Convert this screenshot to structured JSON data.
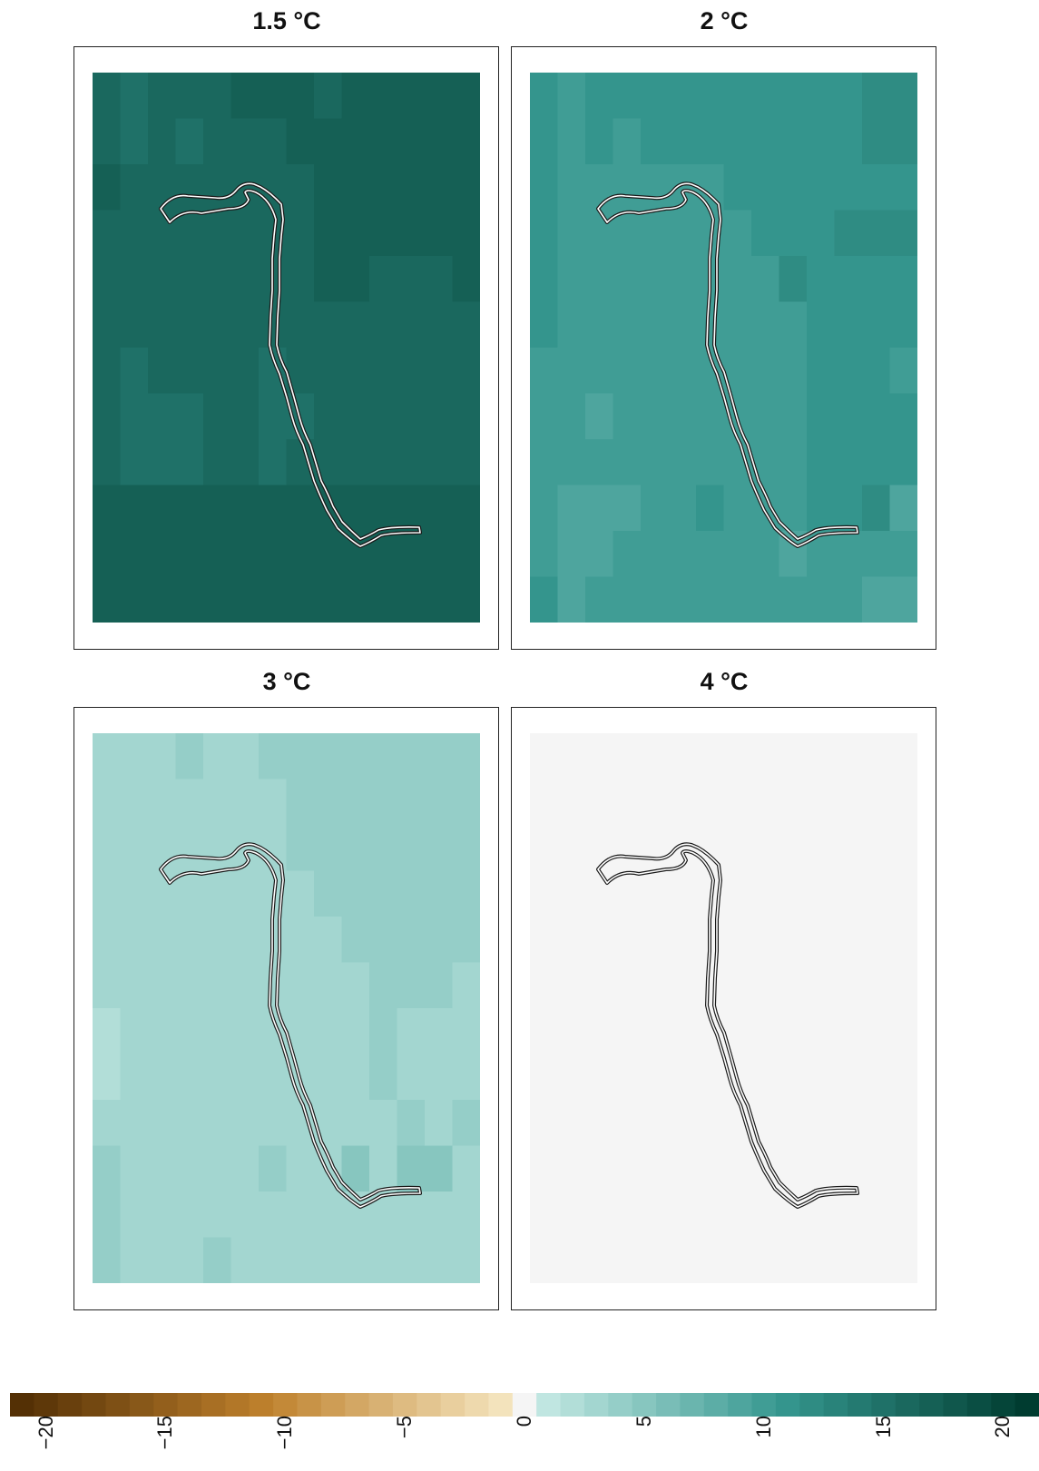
{
  "chart_data": {
    "type": "heatmap",
    "panels": [
      {
        "title": "1.5 °C",
        "grid": [
          [
            16,
            15,
            16,
            16,
            16,
            17,
            17,
            17,
            16,
            17,
            17,
            17,
            17,
            17
          ],
          [
            16,
            15,
            16,
            15,
            16,
            16,
            16,
            17,
            17,
            17,
            17,
            17,
            17,
            17
          ],
          [
            17,
            16,
            16,
            16,
            16,
            16,
            16,
            16,
            17,
            17,
            17,
            17,
            17,
            17
          ],
          [
            16,
            16,
            16,
            16,
            16,
            16,
            16,
            16,
            17,
            17,
            17,
            17,
            17,
            17
          ],
          [
            16,
            16,
            16,
            16,
            16,
            16,
            16,
            16,
            17,
            17,
            16,
            16,
            16,
            17
          ],
          [
            16,
            16,
            16,
            16,
            16,
            16,
            16,
            16,
            16,
            16,
            16,
            16,
            16,
            16
          ],
          [
            16,
            15,
            16,
            16,
            16,
            16,
            15,
            16,
            16,
            16,
            16,
            16,
            16,
            16
          ],
          [
            16,
            15,
            15,
            15,
            16,
            16,
            15,
            15,
            16,
            16,
            16,
            16,
            16,
            16
          ],
          [
            16,
            15,
            15,
            15,
            16,
            16,
            15,
            16,
            16,
            16,
            16,
            16,
            16,
            16
          ],
          [
            17,
            17,
            17,
            17,
            17,
            17,
            17,
            17,
            17,
            17,
            17,
            17,
            17,
            17
          ],
          [
            17,
            17,
            17,
            17,
            17,
            17,
            17,
            17,
            17,
            17,
            17,
            17,
            17,
            17
          ],
          [
            17,
            17,
            17,
            17,
            17,
            17,
            17,
            17,
            17,
            17,
            17,
            17,
            17,
            17
          ]
        ]
      },
      {
        "title": "2 °C",
        "grid": [
          [
            11,
            10,
            11,
            11,
            11,
            11,
            11,
            11,
            11,
            11,
            11,
            11,
            12,
            12
          ],
          [
            11,
            10,
            11,
            10,
            11,
            11,
            11,
            11,
            11,
            11,
            11,
            11,
            12,
            12
          ],
          [
            11,
            10,
            10,
            10,
            10,
            10,
            10,
            11,
            11,
            11,
            11,
            11,
            11,
            11
          ],
          [
            11,
            10,
            10,
            10,
            10,
            10,
            10,
            10,
            11,
            11,
            11,
            12,
            12,
            12
          ],
          [
            11,
            10,
            10,
            10,
            10,
            10,
            10,
            10,
            10,
            12,
            11,
            11,
            11,
            11
          ],
          [
            11,
            10,
            10,
            10,
            10,
            10,
            10,
            10,
            10,
            10,
            11,
            11,
            11,
            11
          ],
          [
            10,
            10,
            10,
            10,
            10,
            10,
            10,
            10,
            10,
            10,
            11,
            11,
            11,
            10
          ],
          [
            10,
            10,
            9,
            10,
            10,
            10,
            10,
            10,
            10,
            10,
            11,
            11,
            11,
            11
          ],
          [
            10,
            10,
            10,
            10,
            10,
            10,
            10,
            10,
            10,
            10,
            11,
            11,
            11,
            11
          ],
          [
            10,
            9,
            9,
            9,
            10,
            10,
            11,
            10,
            10,
            10,
            11,
            11,
            12,
            9
          ],
          [
            10,
            9,
            9,
            10,
            10,
            10,
            10,
            10,
            10,
            9,
            10,
            10,
            10,
            10
          ],
          [
            11,
            9,
            10,
            10,
            10,
            10,
            10,
            10,
            10,
            10,
            10,
            10,
            9,
            9
          ]
        ]
      },
      {
        "title": "3 °C",
        "grid": [
          [
            3,
            3,
            3,
            4,
            3,
            3,
            4,
            4,
            4,
            4,
            4,
            4,
            4,
            4
          ],
          [
            3,
            3,
            3,
            3,
            3,
            3,
            3,
            4,
            4,
            4,
            4,
            4,
            4,
            4
          ],
          [
            3,
            3,
            3,
            3,
            3,
            3,
            3,
            4,
            4,
            4,
            4,
            4,
            4,
            4
          ],
          [
            3,
            3,
            3,
            3,
            3,
            3,
            3,
            3,
            4,
            4,
            4,
            4,
            4,
            4
          ],
          [
            3,
            3,
            3,
            3,
            3,
            3,
            3,
            3,
            3,
            4,
            4,
            4,
            4,
            4
          ],
          [
            3,
            3,
            3,
            3,
            3,
            3,
            3,
            3,
            3,
            3,
            4,
            4,
            4,
            3
          ],
          [
            2,
            3,
            3,
            3,
            3,
            3,
            3,
            3,
            3,
            3,
            4,
            3,
            3,
            3
          ],
          [
            2,
            3,
            3,
            3,
            3,
            3,
            3,
            3,
            3,
            3,
            4,
            3,
            3,
            3
          ],
          [
            3,
            3,
            3,
            3,
            3,
            3,
            3,
            3,
            3,
            3,
            3,
            4,
            3,
            4
          ],
          [
            4,
            3,
            3,
            3,
            3,
            3,
            4,
            3,
            3,
            5,
            3,
            5,
            5,
            3
          ],
          [
            4,
            3,
            3,
            3,
            3,
            3,
            3,
            3,
            3,
            3,
            3,
            3,
            3,
            3
          ],
          [
            4,
            3,
            3,
            3,
            4,
            3,
            3,
            3,
            3,
            3,
            3,
            3,
            3,
            3
          ]
        ]
      },
      {
        "title": "4 °C",
        "grid": [
          [
            0,
            0,
            0,
            0,
            0,
            0,
            0,
            0,
            0,
            0,
            0,
            0,
            0,
            0
          ],
          [
            0,
            0,
            0,
            0,
            0,
            0,
            0,
            0,
            0,
            0,
            0,
            0,
            0,
            0
          ],
          [
            0,
            0,
            0,
            0,
            0,
            0,
            0,
            0,
            0,
            0,
            0,
            0,
            0,
            0
          ],
          [
            0,
            0,
            0,
            0,
            0,
            0,
            0,
            0,
            0,
            0,
            0,
            0,
            0,
            0
          ],
          [
            0,
            0,
            0,
            0,
            0,
            0,
            0,
            0,
            0,
            0,
            0,
            0,
            0,
            0
          ],
          [
            0,
            0,
            0,
            0,
            0,
            0,
            0,
            0,
            0,
            0,
            0,
            0,
            0,
            0
          ],
          [
            0,
            0,
            0,
            0,
            0,
            0,
            0,
            0,
            0,
            0,
            0,
            0,
            0,
            0
          ],
          [
            0,
            0,
            0,
            0,
            0,
            0,
            0,
            0,
            0,
            0,
            0,
            0,
            0,
            0
          ],
          [
            0,
            0,
            0,
            0,
            0,
            0,
            0,
            0,
            0,
            0,
            0,
            0,
            0,
            0
          ],
          [
            0,
            0,
            0,
            0,
            0,
            0,
            0,
            0,
            0,
            0,
            0,
            0,
            0,
            0
          ],
          [
            0,
            0,
            0,
            0,
            0,
            0,
            0,
            0,
            0,
            0,
            0,
            0,
            0,
            0
          ],
          [
            0,
            0,
            0,
            0,
            0,
            0,
            0,
            0,
            0,
            0,
            0,
            0,
            0,
            0
          ]
        ]
      }
    ],
    "colorbar": {
      "range": [
        -21,
        21
      ],
      "ticks": [
        "−20",
        "−15",
        "−10",
        "−5",
        "0",
        "5",
        "10",
        "15",
        "20"
      ],
      "tick_values": [
        -20,
        -15,
        -10,
        -5,
        0,
        5,
        10,
        15,
        20
      ],
      "palette": {
        "negative_end": "#543005",
        "negative_mid": "#bf812d",
        "negative_light": "#f6e8c3",
        "zero": "#f5f5f5",
        "positive_light": "#c7eae5",
        "positive_mid": "#35978f",
        "positive_end": "#003c30"
      },
      "legend_position": "bottom"
    }
  }
}
